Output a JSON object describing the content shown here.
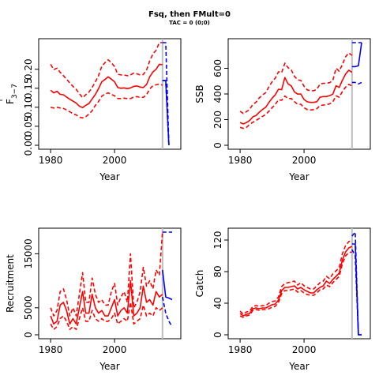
{
  "figure": {
    "title": "Fsq, then FMult=0",
    "subtitle": "TAC = 0 (0;0)"
  },
  "colors": {
    "history": "#ff0000",
    "projection": "#0000ff",
    "divider": "#bebebe",
    "axis": "#000000"
  },
  "chart_data": [
    {
      "type": "line",
      "panel": "top-left",
      "xlabel": "Year",
      "ylabel_base": "F",
      "ylabel_sub": "3−7",
      "xlim": [
        1978,
        2019
      ],
      "ylim": [
        0,
        0.27
      ],
      "xticks": [
        1980,
        2000
      ],
      "xtick_labels": [
        "1980",
        "2000"
      ],
      "yticks": [
        0,
        0.05,
        0.1,
        0.15,
        0.2
      ],
      "ytick_labels": [
        "0.00",
        "0.05",
        "0.10",
        "0.15",
        "0.20"
      ],
      "divider_x": 2015,
      "history": {
        "x": [
          1980,
          1981,
          1982,
          1983,
          1984,
          1985,
          1986,
          1987,
          1988,
          1989,
          1990,
          1991,
          1992,
          1993,
          1994,
          1995,
          1996,
          1997,
          1998,
          1999,
          2000,
          2001,
          2002,
          2003,
          2004,
          2005,
          2006,
          2007,
          2008,
          2009,
          2010,
          2011,
          2012,
          2013,
          2014,
          2015
        ],
        "mid": [
          0.145,
          0.138,
          0.142,
          0.134,
          0.133,
          0.127,
          0.121,
          0.116,
          0.111,
          0.103,
          0.099,
          0.105,
          0.11,
          0.122,
          0.134,
          0.149,
          0.167,
          0.173,
          0.18,
          0.174,
          0.167,
          0.152,
          0.15,
          0.151,
          0.149,
          0.151,
          0.155,
          0.156,
          0.153,
          0.152,
          0.16,
          0.18,
          0.193,
          0.2,
          0.213,
          0.212
        ],
        "lo": [
          0.1,
          0.098,
          0.1,
          0.098,
          0.097,
          0.093,
          0.088,
          0.083,
          0.08,
          0.074,
          0.072,
          0.075,
          0.082,
          0.091,
          0.105,
          0.115,
          0.129,
          0.135,
          0.138,
          0.134,
          0.13,
          0.123,
          0.123,
          0.124,
          0.123,
          0.123,
          0.127,
          0.128,
          0.126,
          0.126,
          0.133,
          0.148,
          0.157,
          0.159,
          0.161,
          0.158
        ],
        "hi": [
          0.213,
          0.199,
          0.203,
          0.192,
          0.183,
          0.174,
          0.164,
          0.155,
          0.147,
          0.136,
          0.125,
          0.133,
          0.14,
          0.152,
          0.167,
          0.183,
          0.208,
          0.217,
          0.225,
          0.217,
          0.207,
          0.187,
          0.185,
          0.185,
          0.183,
          0.185,
          0.19,
          0.188,
          0.185,
          0.186,
          0.198,
          0.222,
          0.24,
          0.25,
          0.27,
          0.27
        ]
      },
      "projection": {
        "x": [
          2015,
          2016,
          2017
        ],
        "mid": [
          0.17,
          0.17,
          0.0
        ],
        "lo": [
          0.17,
          0.17,
          0.0
        ],
        "hi": [
          0.27,
          0.27,
          0.0
        ]
      }
    },
    {
      "type": "line",
      "panel": "top-right",
      "xlabel": "Year",
      "ylabel_base": "SSB",
      "ylabel_sub": "",
      "xlim": [
        1978,
        2019
      ],
      "ylim": [
        0,
        800
      ],
      "xticks": [
        1980,
        2000
      ],
      "xtick_labels": [
        "1980",
        "2000"
      ],
      "yticks": [
        0,
        200,
        400,
        600
      ],
      "ytick_labels": [
        "0",
        "200",
        "400",
        "600"
      ],
      "divider_x": 2015,
      "history": {
        "x": [
          1980,
          1981,
          1982,
          1983,
          1984,
          1985,
          1986,
          1987,
          1988,
          1989,
          1990,
          1991,
          1992,
          1993,
          1994,
          1995,
          1996,
          1997,
          1998,
          1999,
          2000,
          2001,
          2002,
          2003,
          2004,
          2005,
          2006,
          2007,
          2008,
          2009,
          2010,
          2011,
          2012,
          2013,
          2014,
          2015
        ],
        "mid": [
          178,
          166,
          177,
          193,
          222,
          232,
          258,
          279,
          296,
          333,
          367,
          393,
          437,
          433,
          528,
          479,
          463,
          416,
          399,
          400,
          357,
          339,
          334,
          334,
          340,
          375,
          380,
          380,
          387,
          398,
          464,
          451,
          508,
          556,
          585,
          568
        ],
        "lo": [
          140,
          132,
          140,
          163,
          180,
          193,
          210,
          225,
          240,
          265,
          293,
          318,
          355,
          351,
          384,
          364,
          365,
          340,
          320,
          320,
          293,
          278,
          275,
          278,
          285,
          310,
          313,
          316,
          323,
          338,
          385,
          375,
          420,
          453,
          475,
          462
        ],
        "hi": [
          265,
          248,
          262,
          280,
          320,
          336,
          370,
          392,
          410,
          455,
          495,
          523,
          573,
          566,
          640,
          605,
          588,
          537,
          510,
          505,
          460,
          432,
          426,
          425,
          437,
          477,
          483,
          483,
          488,
          505,
          600,
          578,
          630,
          690,
          720,
          700
        ]
      },
      "projection": {
        "x": [
          2015,
          2016,
          2017,
          2018
        ],
        "mid": [
          613,
          613,
          620,
          800
        ],
        "lo": [
          490,
          490,
          478,
          490
        ],
        "hi": [
          800,
          800,
          800,
          800
        ]
      }
    },
    {
      "type": "line",
      "panel": "bottom-left",
      "xlabel": "Year",
      "ylabel_base": "Recruitment",
      "ylabel_sub": "",
      "xlim": [
        1978,
        2019
      ],
      "ylim": [
        0,
        19000
      ],
      "xticks": [
        1980,
        2000
      ],
      "xtick_labels": [
        "1980",
        "2000"
      ],
      "yticks": [
        0,
        5000,
        15000
      ],
      "ytick_labels": [
        "0",
        "5000",
        "15000"
      ],
      "divider_x": 2015,
      "history": {
        "x": [
          1980,
          1981,
          1982,
          1983,
          1984,
          1985,
          1986,
          1987,
          1988,
          1989,
          1990,
          1991,
          1992,
          1993,
          1994,
          1995,
          1996,
          1997,
          1998,
          1999,
          2000,
          2001,
          2002,
          2003,
          2004,
          2005,
          2006,
          2007,
          2008,
          2009,
          2010,
          2011,
          2012,
          2013,
          2014,
          2015
        ],
        "mid": [
          3500,
          2000,
          2500,
          5500,
          6000,
          4500,
          2000,
          3000,
          2000,
          5000,
          8000,
          4000,
          4000,
          7500,
          5000,
          4000,
          4500,
          3500,
          3500,
          5000,
          6500,
          3500,
          4500,
          5000,
          4000,
          10000,
          3500,
          4000,
          5000,
          9000,
          6000,
          6500,
          5500,
          8000,
          7000,
          7500
        ],
        "lo": [
          2000,
          1000,
          1500,
          3000,
          3500,
          2500,
          1000,
          1500,
          1000,
          3000,
          5000,
          2500,
          2500,
          4500,
          3000,
          2500,
          3000,
          2500,
          2500,
          3000,
          4000,
          2000,
          2500,
          3000,
          2500,
          6000,
          2000,
          2500,
          3000,
          5500,
          3500,
          4000,
          3500,
          5000,
          4500,
          5000
        ],
        "hi": [
          5000,
          3500,
          4500,
          8000,
          8500,
          6500,
          3500,
          5000,
          3500,
          7500,
          11500,
          6000,
          6000,
          10500,
          7500,
          6000,
          6500,
          5500,
          5500,
          8000,
          9500,
          5500,
          7000,
          8000,
          6000,
          15000,
          5000,
          6000,
          8000,
          12500,
          9000,
          10000,
          8500,
          12000,
          11000,
          19000
        ]
      },
      "projection": {
        "x": [
          2015,
          2016,
          2017,
          2018
        ],
        "mid": [
          12000,
          7000,
          6800,
          6500
        ],
        "lo": [
          7000,
          4000,
          2500,
          1500
        ],
        "hi": [
          19000,
          19000,
          19000,
          19000
        ]
      }
    },
    {
      "type": "line",
      "panel": "bottom-right",
      "xlabel": "Year",
      "ylabel_base": "Catch",
      "ylabel_sub": "",
      "xlim": [
        1978,
        2019
      ],
      "ylim": [
        0,
        130
      ],
      "xticks": [
        1980,
        2000
      ],
      "xtick_labels": [
        "1980",
        "2000"
      ],
      "yticks": [
        0,
        40,
        80,
        120
      ],
      "ytick_labels": [
        "0",
        "40",
        "80",
        "120"
      ],
      "divider_x": 2015,
      "history": {
        "x": [
          1980,
          1981,
          1982,
          1983,
          1984,
          1985,
          1986,
          1987,
          1988,
          1989,
          1990,
          1991,
          1992,
          1993,
          1994,
          1995,
          1996,
          1997,
          1998,
          1999,
          2000,
          2001,
          2002,
          2003,
          2004,
          2005,
          2006,
          2007,
          2008,
          2009,
          2010,
          2011,
          2012,
          2013,
          2014,
          2015
        ],
        "mid": [
          27,
          24,
          26,
          27,
          33,
          34,
          33,
          34,
          34,
          36,
          38,
          39,
          44,
          56,
          60,
          60,
          61,
          62,
          58,
          60,
          57,
          55,
          53,
          53,
          57,
          60,
          62,
          68,
          65,
          70,
          74,
          78,
          95,
          105,
          110,
          112
        ],
        "lo": [
          24,
          22,
          24,
          25,
          31,
          32,
          31,
          32,
          32,
          33,
          35,
          36,
          41,
          52,
          56,
          56,
          57,
          58,
          54,
          56,
          53,
          51,
          50,
          50,
          53,
          57,
          58,
          63,
          61,
          66,
          70,
          74,
          90,
          100,
          104,
          105
        ],
        "hi": [
          30,
          26,
          29,
          30,
          36,
          37,
          36,
          37,
          37,
          40,
          42,
          43,
          48,
          61,
          65,
          66,
          67,
          68,
          63,
          66,
          62,
          60,
          58,
          58,
          62,
          66,
          68,
          74,
          71,
          77,
          81,
          85,
          103,
          113,
          118,
          120
        ]
      },
      "projection": {
        "x": [
          2015,
          2016,
          2017,
          2018
        ],
        "mid": [
          115,
          115,
          0,
          0
        ],
        "lo": [
          108,
          100,
          0,
          0
        ],
        "hi": [
          125,
          130,
          0,
          0
        ]
      }
    }
  ]
}
